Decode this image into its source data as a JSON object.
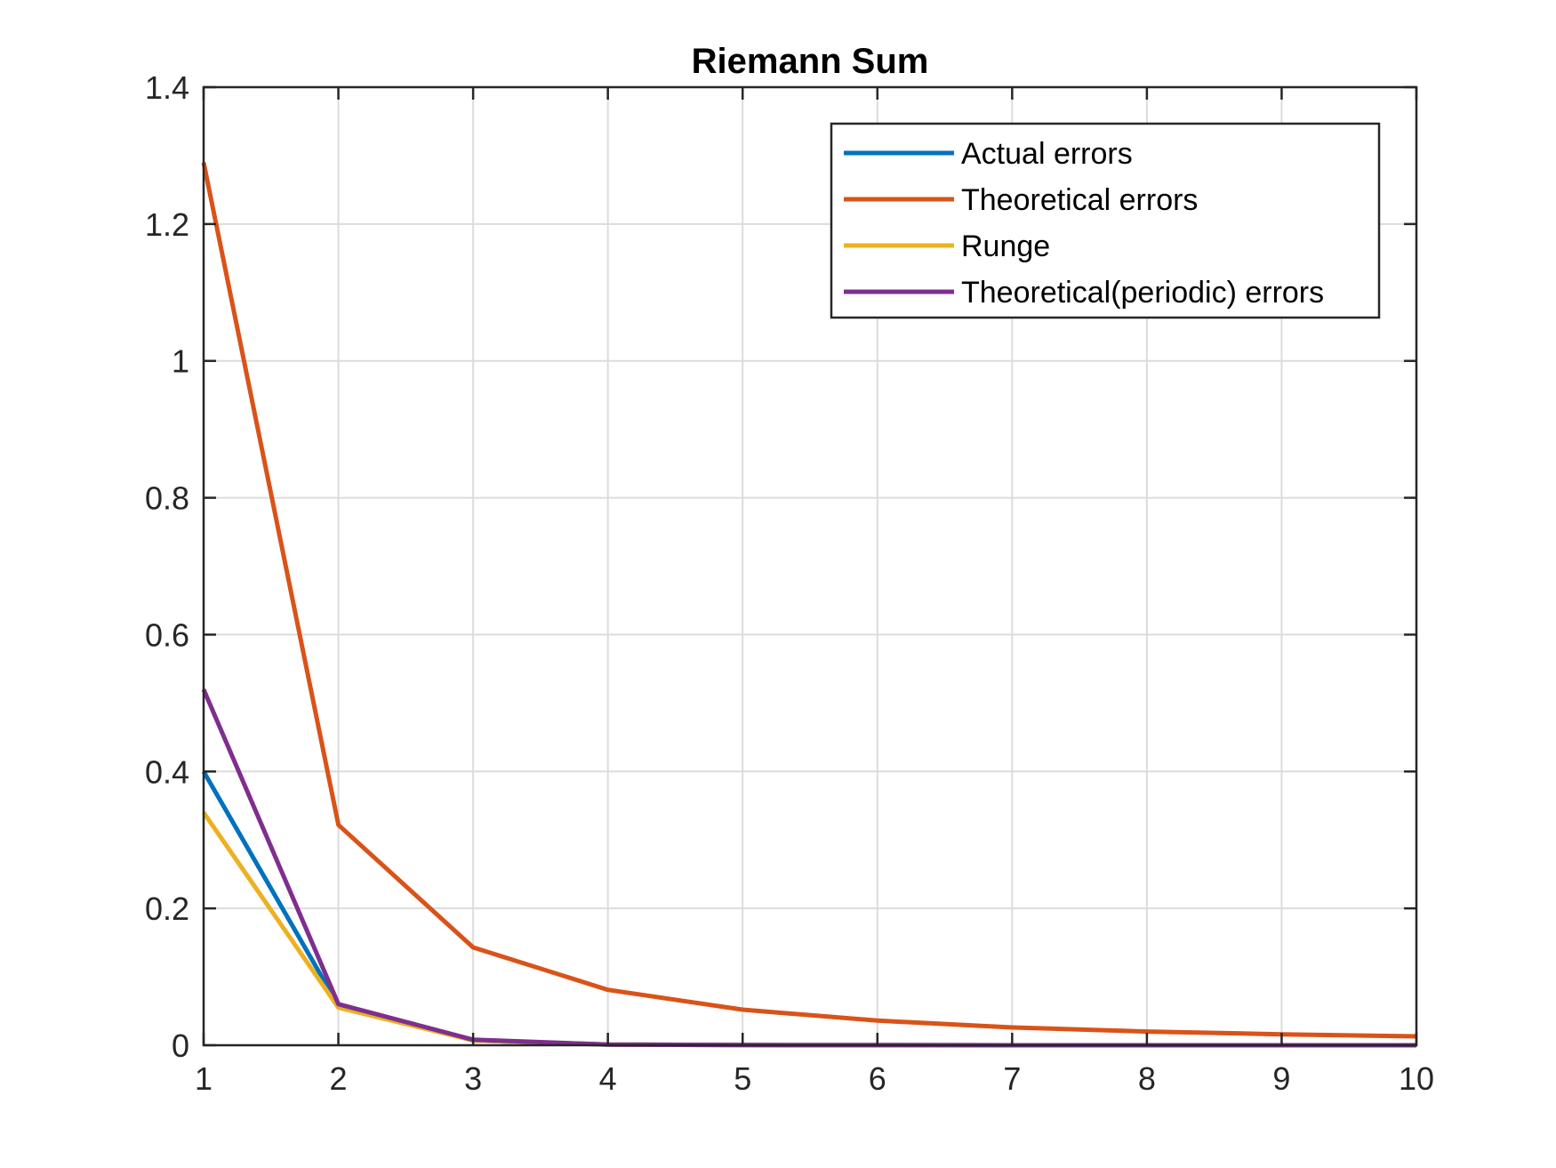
{
  "chart_data": {
    "type": "line",
    "title": "Riemann Sum",
    "xlabel": "",
    "ylabel": "",
    "xlim": [
      1,
      10
    ],
    "ylim": [
      0,
      1.4
    ],
    "x_ticks": [
      "1",
      "2",
      "3",
      "4",
      "5",
      "6",
      "7",
      "8",
      "9",
      "10"
    ],
    "y_ticks": [
      "0",
      "0.2",
      "0.4",
      "0.6",
      "0.8",
      "1",
      "1.2",
      "1.4"
    ],
    "grid": true,
    "legend_position": "top-right",
    "x": [
      1,
      2,
      3,
      4,
      5,
      6,
      7,
      8,
      9,
      10
    ],
    "series": [
      {
        "name": "Actual errors",
        "color": "#0072BD",
        "values": [
          0.4,
          0.058,
          0.007,
          0.001,
          0.0002,
          0.0001,
          0.0,
          0.0,
          0.0,
          0.0
        ]
      },
      {
        "name": "Theoretical errors",
        "color": "#D95319",
        "values": [
          1.29,
          0.322,
          0.143,
          0.081,
          0.052,
          0.036,
          0.026,
          0.02,
          0.016,
          0.013
        ]
      },
      {
        "name": "Runge",
        "color": "#EDB120",
        "values": [
          0.34,
          0.055,
          0.007,
          0.001,
          0.0002,
          0.0001,
          0.0,
          0.0,
          0.0,
          0.0
        ]
      },
      {
        "name": "Theoretical(periodic) errors",
        "color": "#7E2F8E",
        "values": [
          0.52,
          0.06,
          0.008,
          0.001,
          0.0002,
          0.0001,
          0.0,
          0.0,
          0.0,
          0.0
        ]
      }
    ]
  }
}
